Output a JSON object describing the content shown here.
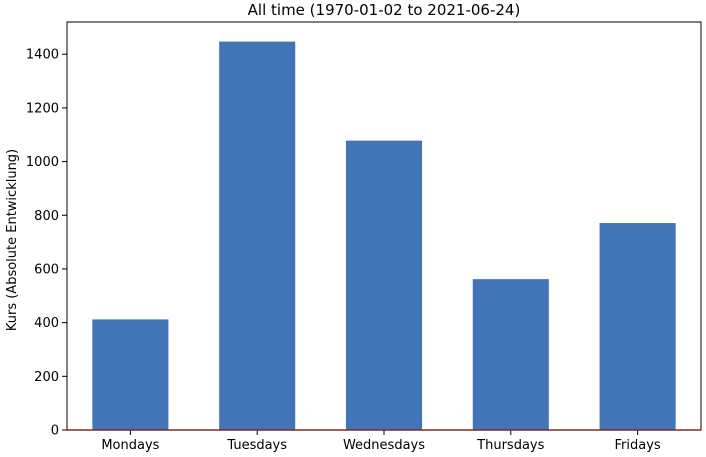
{
  "chart_data": {
    "type": "bar",
    "title": "All time (1970-01-02 to 2021-06-24)",
    "xlabel": "",
    "ylabel": "Kurs (Absolute Entwicklung)",
    "categories": [
      "Mondays",
      "Tuesdays",
      "Wednesdays",
      "Thursdays",
      "Fridays"
    ],
    "values": [
      412,
      1447,
      1078,
      562,
      771
    ],
    "ylim": [
      0,
      1520
    ],
    "yticks": [
      0,
      200,
      400,
      600,
      800,
      1000,
      1200,
      1400
    ],
    "grid": false,
    "legend": false,
    "colors": {
      "bar": "#4275b7",
      "baseline": "#7b2d26",
      "axis": "#000000"
    }
  }
}
